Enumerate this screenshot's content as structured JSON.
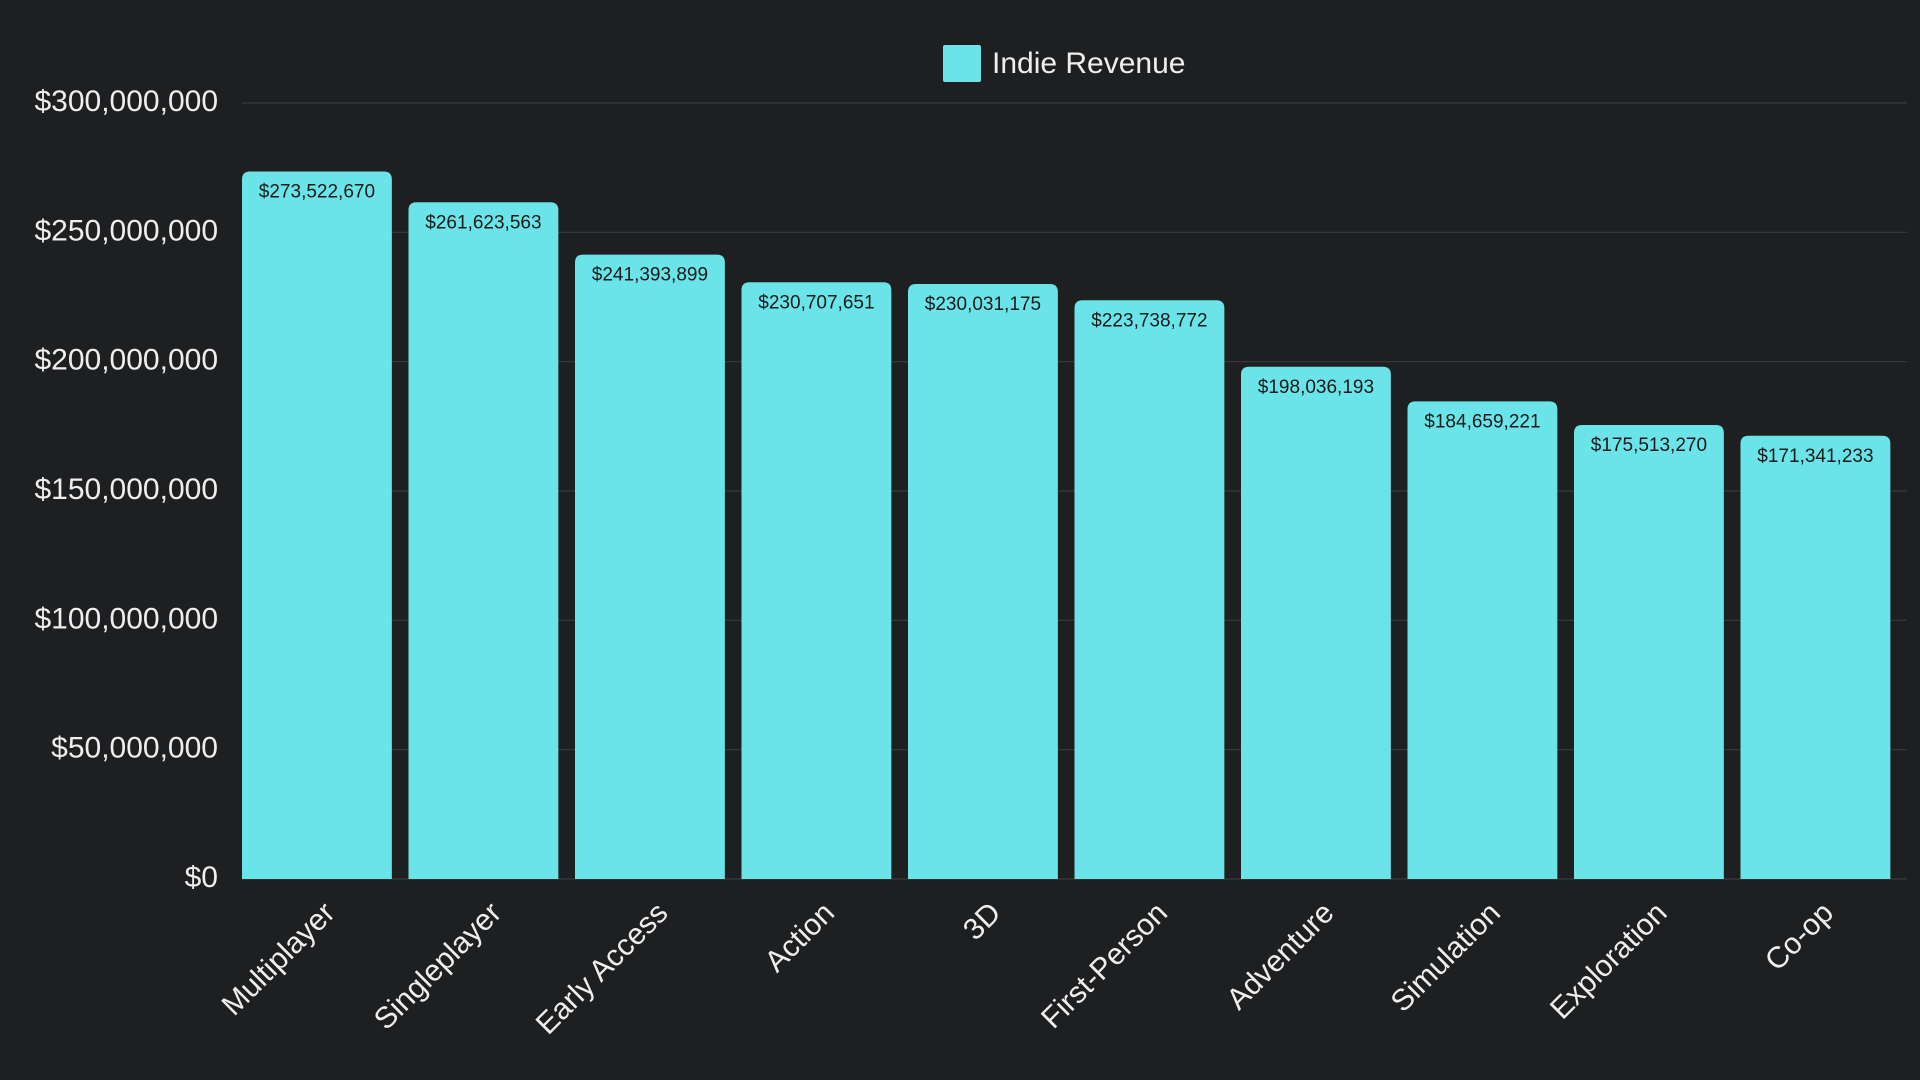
{
  "chart_data": {
    "type": "bar",
    "categories": [
      "Multiplayer",
      "Singleplayer",
      "Early Access",
      "Action",
      "3D",
      "First-Person",
      "Adventure",
      "Simulation",
      "Exploration",
      "Co-op"
    ],
    "series": [
      {
        "name": "Indie Revenue",
        "color": "#6ae4e8",
        "values": [
          273522670,
          261623563,
          241393899,
          230707651,
          230031175,
          223738772,
          198036193,
          184659221,
          175513270,
          171341233
        ],
        "value_labels": [
          "$273,522,670",
          "$261,623,563",
          "$241,393,899",
          "$230,707,651",
          "$230,031,175",
          "$223,738,772",
          "$198,036,193",
          "$184,659,221",
          "$175,513,270",
          "$171,341,233"
        ]
      }
    ],
    "ylim": [
      0,
      300000000
    ],
    "yticks": [
      {
        "value": 0,
        "label": "$0"
      },
      {
        "value": 50000000,
        "label": "$50,000,000"
      },
      {
        "value": 100000000,
        "label": "$100,000,000"
      },
      {
        "value": 150000000,
        "label": "$150,000,000"
      },
      {
        "value": 200000000,
        "label": "$200,000,000"
      },
      {
        "value": 250000000,
        "label": "$250,000,000"
      },
      {
        "value": 300000000,
        "label": "$300,000,000"
      }
    ],
    "grid": true,
    "legend": "top"
  }
}
